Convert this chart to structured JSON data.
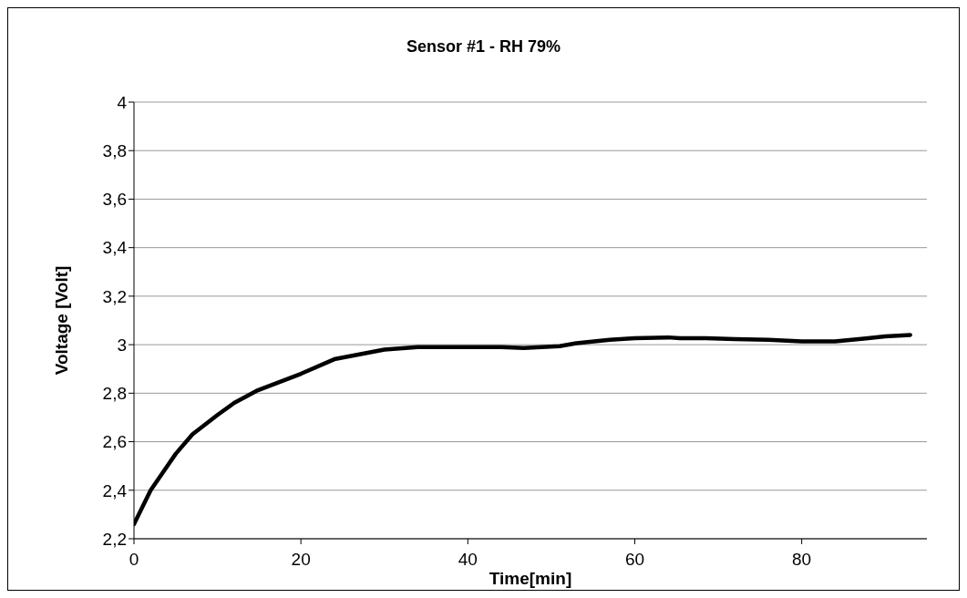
{
  "chart_data": {
    "type": "line",
    "title": "Sensor #1 - RH 79%",
    "xlabel": "Time[min]",
    "ylabel": "Voltage [Volt]",
    "x": [
      0,
      2,
      5,
      7,
      10,
      12,
      14.7,
      20,
      24,
      27,
      30,
      34,
      38,
      44,
      46.7,
      51,
      53,
      57,
      60,
      64,
      65.4,
      68.5,
      72,
      76,
      80,
      84,
      87.7,
      90,
      93
    ],
    "series": [
      {
        "color": "#000000",
        "values": [
          2.26,
          2.4,
          2.55,
          2.63,
          2.71,
          2.76,
          2.81,
          2.88,
          2.94,
          2.96,
          2.98,
          2.99,
          2.99,
          2.99,
          2.986,
          2.994,
          3.006,
          3.02,
          3.027,
          3.03,
          3.027,
          3.027,
          3.023,
          3.02,
          3.014,
          3.014,
          3.026,
          3.034,
          3.04
        ]
      }
    ],
    "xlim": [
      0,
      95
    ],
    "xticks": [
      0,
      20,
      40,
      60,
      80
    ],
    "ylim": [
      2.2,
      4
    ],
    "yticks": [
      {
        "value": 2.2,
        "label": "2,2"
      },
      {
        "value": 2.4,
        "label": "2,4"
      },
      {
        "value": 2.6,
        "label": "2,6"
      },
      {
        "value": 2.8,
        "label": "2,8"
      },
      {
        "value": 3,
        "label": "3"
      },
      {
        "value": 3.2,
        "label": "3,2"
      },
      {
        "value": 3.4,
        "label": "3,4"
      },
      {
        "value": 3.6,
        "label": "3,6"
      },
      {
        "value": 3.8,
        "label": "3,8"
      },
      {
        "value": 4,
        "label": "4"
      }
    ],
    "grid": "y",
    "legend": false,
    "marker": "none",
    "line_style": "solid"
  }
}
